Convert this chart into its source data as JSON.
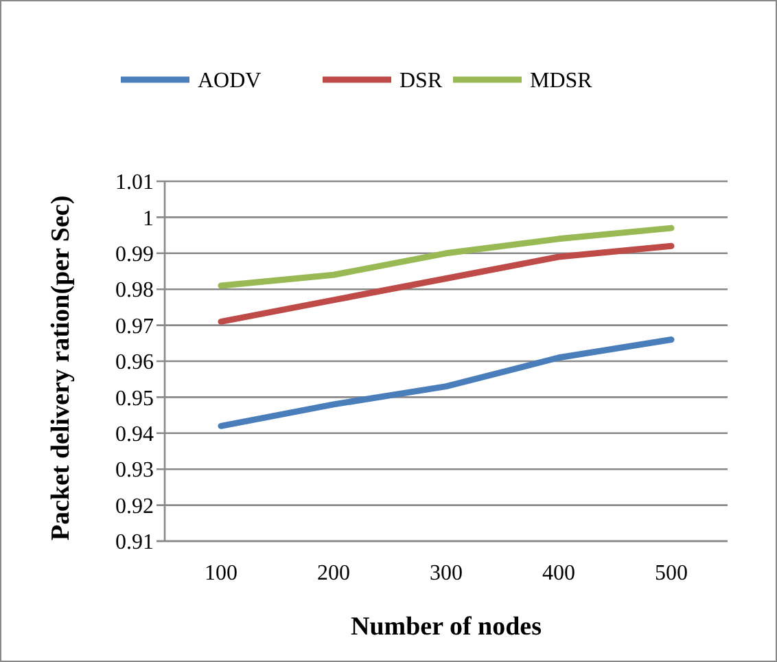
{
  "chart_data": {
    "type": "line",
    "xlabel": "Number of nodes",
    "ylabel": "Packet delivery ration(per Sec)",
    "categories": [
      "100",
      "200",
      "300",
      "400",
      "500"
    ],
    "series": [
      {
        "name": "AODV",
        "color": "#4a7ebb",
        "values": [
          0.942,
          0.948,
          0.953,
          0.961,
          0.966
        ]
      },
      {
        "name": "DSR",
        "color": "#be4b48",
        "values": [
          0.971,
          0.977,
          0.983,
          0.989,
          0.992
        ]
      },
      {
        "name": "MDSR",
        "color": "#98b954",
        "values": [
          0.981,
          0.984,
          0.99,
          0.994,
          0.997
        ]
      }
    ],
    "ylim": [
      0.91,
      1.01
    ],
    "yticks": [
      0.91,
      0.92,
      0.93,
      0.94,
      0.95,
      0.96,
      0.97,
      0.98,
      0.99,
      1,
      1.01
    ],
    "grid": "y",
    "legend": "top",
    "marker": "none",
    "line_style": "solid"
  }
}
